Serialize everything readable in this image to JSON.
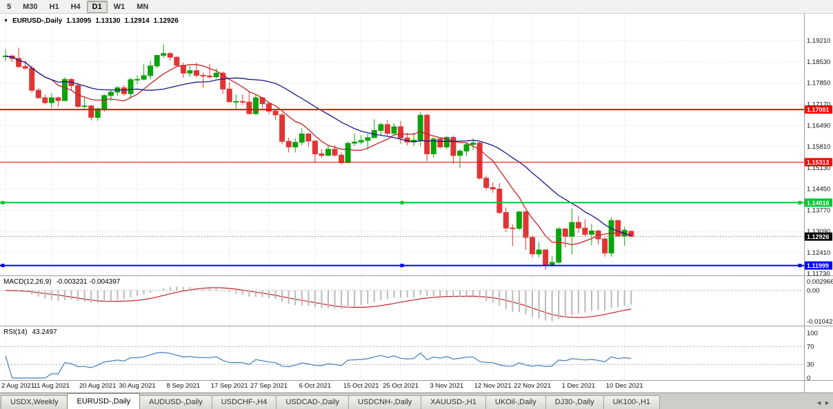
{
  "toolbar": {
    "buttons": [
      "5",
      "M30",
      "H1",
      "H4",
      "D1",
      "W1",
      "MN"
    ],
    "active": "D1"
  },
  "header": {
    "collapse_icon": "▼",
    "symbol_label": "EURUSD-,Daily",
    "open": "1.13095",
    "high": "1.13130",
    "low": "1.12914",
    "close": "1.12926"
  },
  "chart_data": {
    "type": "candlestick",
    "title": "EURUSD-,Daily",
    "symbol": "EURUSD-",
    "timeframe": "Daily",
    "price_range": {
      "max": 1.2003,
      "min": 1.1168
    },
    "y_ticks": {
      "values": [
        1.1921,
        1.1853,
        1.1785,
        1.1717,
        1.1649,
        1.1581,
        1.1513,
        1.1445,
        1.1377,
        1.1309,
        1.1241,
        1.1173
      ],
      "labels": [
        "1.19210",
        "1.18530",
        "1.17850",
        "1.17170",
        "1.16490",
        "1.15810",
        "1.15130",
        "1.14450",
        "1.13770",
        "1.13090",
        "1.12410",
        "1.11730"
      ]
    },
    "x_labels": [
      "2 Aug 2021",
      "11 Aug 2021",
      "20 Aug 2021",
      "30 Aug 2021",
      "8 Sep 2021",
      "17 Sep 2021",
      "27 Sep 2021",
      "6 Oct 2021",
      "15 Oct 2021",
      "25 Oct 2021",
      "3 Nov 2021",
      "12 Nov 2021",
      "22 Nov 2021",
      "1 Dec 2021",
      "10 Dec 2021"
    ],
    "x_label_indices": [
      0,
      7,
      14,
      20,
      27,
      34,
      40,
      47,
      54,
      60,
      67,
      74,
      80,
      87,
      94
    ],
    "colors": {
      "up": "#0aa30a",
      "down": "#e03535",
      "grid": "#d9d9d9",
      "ma_fast": "#c42222",
      "ma_slow": "#16168a",
      "macd_hist": "#b9b9b9",
      "macd_signal": "#c42222",
      "rsi": "#3f7cbf",
      "separator": "#9b9b9b",
      "axis_text": "#111111"
    },
    "moving_averages": [
      {
        "period": 8,
        "color_key": "ma_fast"
      },
      {
        "period": 21,
        "color_key": "ma_slow"
      }
    ],
    "candles": [
      [
        1.187,
        1.1893,
        1.1856,
        1.1872
      ],
      [
        1.1872,
        1.1876,
        1.1853,
        1.1864
      ],
      [
        1.1864,
        1.1899,
        1.1833,
        1.1838
      ],
      [
        1.1838,
        1.1857,
        1.1828,
        1.1833
      ],
      [
        1.1833,
        1.1841,
        1.1754,
        1.1762
      ],
      [
        1.1762,
        1.1769,
        1.1736,
        1.1738
      ],
      [
        1.1738,
        1.1748,
        1.1717,
        1.1722
      ],
      [
        1.1722,
        1.1753,
        1.1706,
        1.1738
      ],
      [
        1.1738,
        1.1742,
        1.1708,
        1.1729
      ],
      [
        1.1729,
        1.1804,
        1.1727,
        1.1797
      ],
      [
        1.1797,
        1.18,
        1.1764,
        1.1777
      ],
      [
        1.1777,
        1.1786,
        1.1705,
        1.171
      ],
      [
        1.171,
        1.1742,
        1.17,
        1.1712
      ],
      [
        1.1712,
        1.1715,
        1.1665,
        1.1675
      ],
      [
        1.1675,
        1.1705,
        1.1664,
        1.1703
      ],
      [
        1.1703,
        1.175,
        1.1693,
        1.1745
      ],
      [
        1.1745,
        1.1765,
        1.1727,
        1.1756
      ],
      [
        1.1756,
        1.1775,
        1.1743,
        1.177
      ],
      [
        1.177,
        1.1779,
        1.1745,
        1.1751
      ],
      [
        1.1751,
        1.1802,
        1.1735,
        1.1796
      ],
      [
        1.1796,
        1.181,
        1.1781,
        1.1797
      ],
      [
        1.1797,
        1.1845,
        1.1794,
        1.1809
      ],
      [
        1.1809,
        1.1857,
        1.1796,
        1.184
      ],
      [
        1.184,
        1.1875,
        1.1833,
        1.1874
      ],
      [
        1.1874,
        1.1909,
        1.1866,
        1.188
      ],
      [
        1.188,
        1.1885,
        1.1857,
        1.1868
      ],
      [
        1.1868,
        1.187,
        1.1837,
        1.1842
      ],
      [
        1.1842,
        1.1851,
        1.1802,
        1.1817
      ],
      [
        1.1817,
        1.1841,
        1.1805,
        1.1825
      ],
      [
        1.1825,
        1.1851,
        1.1803,
        1.181
      ],
      [
        1.181,
        1.1818,
        1.177,
        1.1808
      ],
      [
        1.1808,
        1.1846,
        1.18,
        1.1805
      ],
      [
        1.1805,
        1.1832,
        1.18,
        1.1817
      ],
      [
        1.1817,
        1.1822,
        1.175,
        1.1766
      ],
      [
        1.1766,
        1.1788,
        1.1724,
        1.1725
      ],
      [
        1.1725,
        1.1748,
        1.17,
        1.1726
      ],
      [
        1.1726,
        1.1749,
        1.1715,
        1.1724
      ],
      [
        1.1724,
        1.1756,
        1.1684,
        1.1687
      ],
      [
        1.1687,
        1.175,
        1.1683,
        1.1738
      ],
      [
        1.1738,
        1.174,
        1.17,
        1.1719
      ],
      [
        1.1719,
        1.1722,
        1.1685,
        1.1695
      ],
      [
        1.1695,
        1.1703,
        1.1668,
        1.1683
      ],
      [
        1.1683,
        1.169,
        1.1589,
        1.1598
      ],
      [
        1.1598,
        1.161,
        1.1563,
        1.158
      ],
      [
        1.158,
        1.1608,
        1.1562,
        1.1595
      ],
      [
        1.1595,
        1.164,
        1.1586,
        1.1622
      ],
      [
        1.1622,
        1.1625,
        1.1581,
        1.1599
      ],
      [
        1.1599,
        1.1602,
        1.1529,
        1.1558
      ],
      [
        1.1558,
        1.1573,
        1.1546,
        1.1553
      ],
      [
        1.1553,
        1.1586,
        1.1551,
        1.1573
      ],
      [
        1.1573,
        1.1586,
        1.1549,
        1.1554
      ],
      [
        1.1554,
        1.1563,
        1.1524,
        1.153
      ],
      [
        1.153,
        1.1597,
        1.1528,
        1.1592
      ],
      [
        1.1592,
        1.1624,
        1.1583,
        1.1596
      ],
      [
        1.1596,
        1.1618,
        1.1588,
        1.1601
      ],
      [
        1.1601,
        1.1622,
        1.1571,
        1.161
      ],
      [
        1.161,
        1.1669,
        1.1609,
        1.1633
      ],
      [
        1.1633,
        1.1658,
        1.1617,
        1.1652
      ],
      [
        1.1652,
        1.1667,
        1.1617,
        1.1624
      ],
      [
        1.1624,
        1.1656,
        1.162,
        1.1645
      ],
      [
        1.1645,
        1.1664,
        1.159,
        1.1609
      ],
      [
        1.1609,
        1.1626,
        1.1585,
        1.1596
      ],
      [
        1.1596,
        1.1626,
        1.1583,
        1.1602
      ],
      [
        1.1602,
        1.1692,
        1.1582,
        1.1682
      ],
      [
        1.1682,
        1.1686,
        1.1535,
        1.1558
      ],
      [
        1.1558,
        1.1609,
        1.1545,
        1.1606
      ],
      [
        1.1606,
        1.1612,
        1.1575,
        1.158
      ],
      [
        1.158,
        1.1616,
        1.1573,
        1.1611
      ],
      [
        1.1611,
        1.1617,
        1.1527,
        1.1553
      ],
      [
        1.1553,
        1.1573,
        1.1513,
        1.1567
      ],
      [
        1.1567,
        1.1595,
        1.1551,
        1.1588
      ],
      [
        1.1588,
        1.1608,
        1.157,
        1.1593
      ],
      [
        1.1593,
        1.1597,
        1.1476,
        1.148
      ],
      [
        1.148,
        1.1489,
        1.1443,
        1.145
      ],
      [
        1.145,
        1.1466,
        1.1433,
        1.1445
      ],
      [
        1.1445,
        1.1464,
        1.1365,
        1.137
      ],
      [
        1.137,
        1.1386,
        1.1307,
        1.132
      ],
      [
        1.132,
        1.1332,
        1.1262,
        1.1319
      ],
      [
        1.1319,
        1.1374,
        1.1313,
        1.1372
      ],
      [
        1.1372,
        1.1374,
        1.125,
        1.129
      ],
      [
        1.129,
        1.1296,
        1.1226,
        1.1237
      ],
      [
        1.1237,
        1.1275,
        1.1226,
        1.125
      ],
      [
        1.125,
        1.1251,
        1.1186,
        1.12
      ],
      [
        1.12,
        1.123,
        1.1196,
        1.121
      ],
      [
        1.121,
        1.1323,
        1.1205,
        1.1317
      ],
      [
        1.1317,
        1.132,
        1.1258,
        1.1293
      ],
      [
        1.1293,
        1.1383,
        1.1235,
        1.1338
      ],
      [
        1.1338,
        1.136,
        1.1305,
        1.132
      ],
      [
        1.132,
        1.1348,
        1.1293,
        1.13
      ],
      [
        1.13,
        1.1334,
        1.1265,
        1.1311
      ],
      [
        1.1311,
        1.1314,
        1.1267,
        1.1285
      ],
      [
        1.1285,
        1.129,
        1.1228,
        1.124
      ],
      [
        1.124,
        1.1355,
        1.1228,
        1.1344
      ],
      [
        1.1344,
        1.1348,
        1.1291,
        1.1294
      ],
      [
        1.1294,
        1.1324,
        1.1263,
        1.1313
      ],
      [
        1.13095,
        1.1313,
        1.12914,
        1.12926
      ]
    ],
    "hlines": [
      {
        "value": 1.17001,
        "label": "1.17001",
        "color": "#ff0000",
        "width": 2,
        "handles": false
      },
      {
        "value": 1.15313,
        "label": "1.15313",
        "color": "#ff0000",
        "width": 1,
        "handles": false
      },
      {
        "value": 1.14016,
        "label": "1.14016",
        "color": "#00c832",
        "width": 2,
        "handles": true
      },
      {
        "value": 1.11999,
        "label": "1.11999",
        "color": "#0000ff",
        "width": 2,
        "handles": true
      }
    ],
    "bid_line": {
      "value": 1.12926,
      "label": "1.12926",
      "tag_bg": "#000000"
    },
    "macd": {
      "name": "MACD(12,26,9)",
      "values_text": "-0.003231 -0.004397",
      "fast": 12,
      "slow": 26,
      "signal": 9,
      "axis_ticks": [
        {
          "label": "0.002966",
          "value": 0.002966
        },
        {
          "label": "0.00",
          "value": 0
        },
        {
          "label": "-0.010422",
          "value": -0.010422
        }
      ]
    },
    "rsi": {
      "name": "RSI(14)",
      "value_text": "43.2497",
      "period": 14,
      "levels": [
        70,
        30
      ],
      "axis_ticks": [
        {
          "label": "100",
          "value": 100
        },
        {
          "label": "70",
          "value": 70
        },
        {
          "label": "30",
          "value": 30
        },
        {
          "label": "0",
          "value": 0
        }
      ]
    }
  },
  "tabs": {
    "items": [
      "USDX,Weekly",
      "EURUSD-,Daily",
      "AUDUSD-,Daily",
      "USDCHF-,H4",
      "USDCAD-,Daily",
      "USDCNH-,Daily",
      "XAUUSD-,H1",
      "UKOil-,Daily",
      "DJ30-,Daily",
      "UK100-,H1"
    ],
    "active_index": 1,
    "scroll_left_icon": "◄",
    "scroll_right_icon": "►"
  }
}
